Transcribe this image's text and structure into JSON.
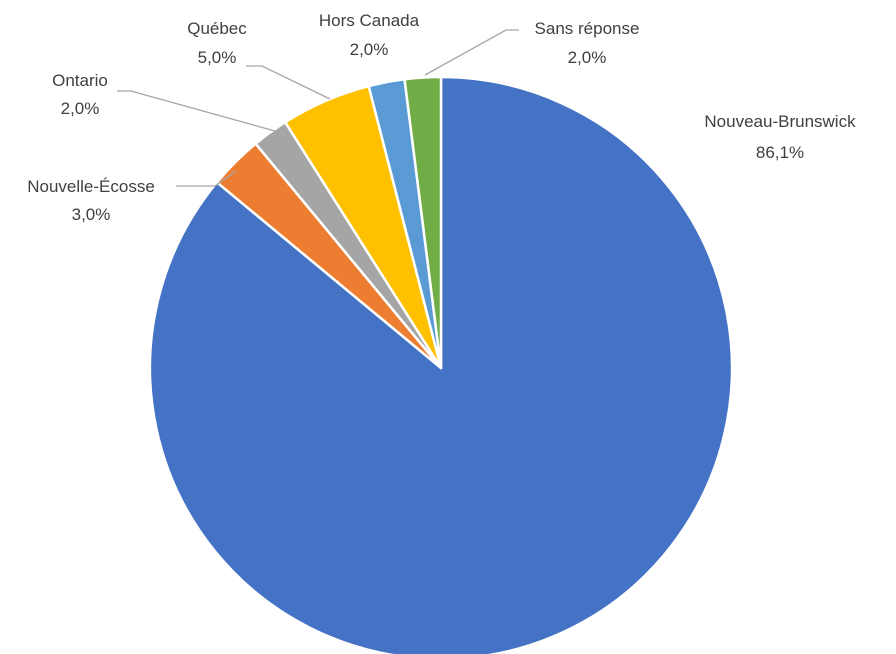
{
  "chart_data": {
    "type": "pie",
    "title": "",
    "start_angle_deg": 0,
    "direction": "clockwise",
    "slices": [
      {
        "name": "Nouveau-Brunswick",
        "value": 86.1,
        "label": "86,1%",
        "color": "#4472C4"
      },
      {
        "name": "Nouvelle-Écosse",
        "value": 3.0,
        "label": "3,0%",
        "color": "#ED7D31"
      },
      {
        "name": "Ontario",
        "value": 2.0,
        "label": "2,0%",
        "color": "#A5A5A5"
      },
      {
        "name": "Québec",
        "value": 5.0,
        "label": "5,0%",
        "color": "#FFC000"
      },
      {
        "name": "Hors Canada",
        "value": 2.0,
        "label": "2,0%",
        "color": "#5B9BD5"
      },
      {
        "name": "Sans réponse",
        "value": 2.0,
        "label": "2,0%",
        "color": "#70AD47"
      }
    ]
  }
}
